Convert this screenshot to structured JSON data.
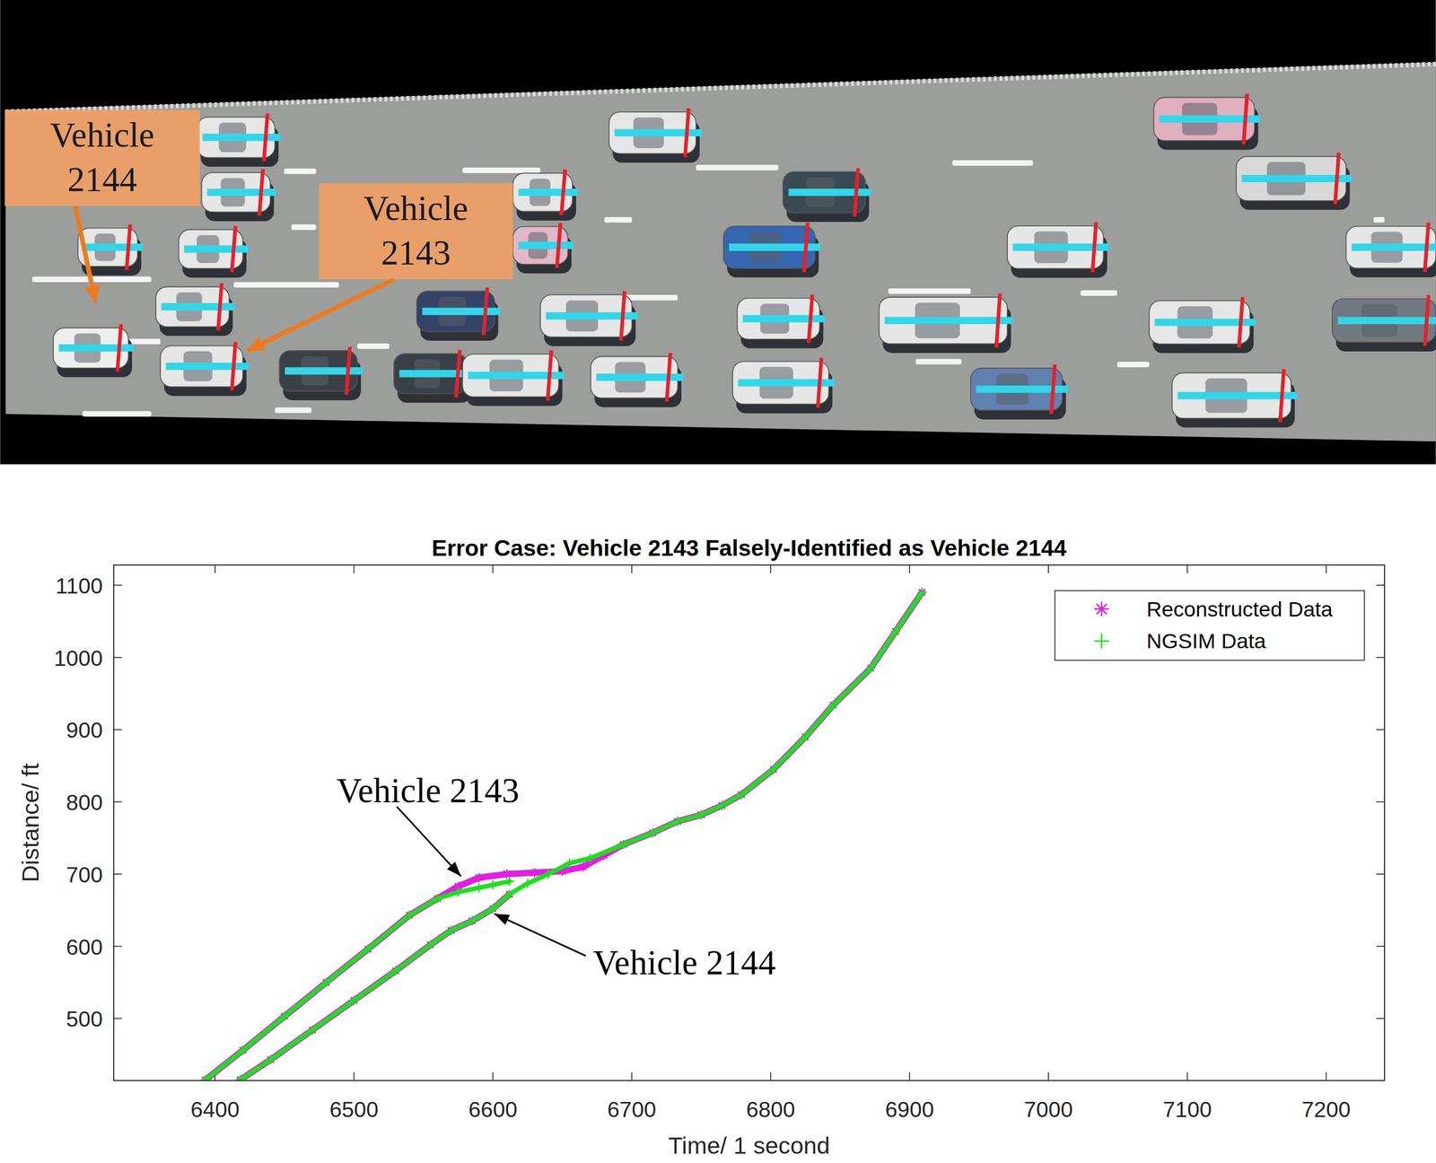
{
  "image": {
    "labels": [
      {
        "lines": [
          "Vehicle",
          "2144"
        ]
      },
      {
        "lines": [
          "Vehicle",
          "2143"
        ]
      }
    ]
  },
  "chart_data": {
    "type": "line",
    "title": "Error Case: Vehicle 2143  Falsely-Identified as Vehicle 2144",
    "x_label": "Time/ 1 second",
    "y_label": "Distance/ ft",
    "xlim": [
      6327,
      7242
    ],
    "ylim": [
      414,
      1128
    ],
    "xticks": [
      6400,
      6500,
      6600,
      6700,
      6800,
      6900,
      7000,
      7100,
      7200
    ],
    "yticks": [
      500,
      600,
      700,
      800,
      900,
      1000,
      1100
    ],
    "grid": false,
    "legend": "upper right",
    "series": [
      {
        "name": "Reconstructed Data",
        "color": "#e020e0",
        "marker": "star",
        "line_style": "solid",
        "x": [
          6393,
          6420,
          6450,
          6480,
          6510,
          6540,
          6560,
          6575,
          6590,
          6610,
          6630,
          6650,
          6665,
          6680,
          6694,
          6715,
          6733,
          6750,
          6765,
          6779,
          6802,
          6825,
          6845,
          6872,
          6890,
          6909,
          null,
          6418,
          6440,
          6470,
          6500,
          6530,
          6555,
          6570,
          6585,
          6600,
          6612
        ],
        "values": [
          415,
          456,
          503,
          550,
          596,
          643,
          666,
          683,
          695,
          700,
          702,
          704,
          710,
          726,
          741,
          757,
          773,
          782,
          795,
          810,
          845,
          890,
          934,
          985,
          1036,
          1090,
          null,
          415,
          443,
          484,
          525,
          566,
          602,
          622,
          635,
          652,
          672
        ]
      },
      {
        "name": "NGSIM Data",
        "color": "#22dd22",
        "marker": "plus",
        "line_style": "solid",
        "x": [
          6393,
          6420,
          6450,
          6480,
          6510,
          6540,
          6560,
          6575,
          6590,
          6600,
          6612,
          null,
          6418,
          6440,
          6470,
          6500,
          6530,
          6555,
          6570,
          6585,
          6600,
          6612,
          6625,
          6640,
          6655,
          6670,
          6694,
          6715,
          6733,
          6750,
          6765,
          6779,
          6802,
          6825,
          6845,
          6872,
          6890,
          6909
        ],
        "values": [
          415,
          456,
          503,
          550,
          596,
          643,
          666,
          675,
          681,
          685,
          690,
          null,
          415,
          443,
          484,
          525,
          566,
          602,
          622,
          635,
          652,
          672,
          687,
          700,
          715,
          722,
          741,
          757,
          773,
          782,
          795,
          810,
          845,
          890,
          934,
          985,
          1036,
          1090
        ]
      }
    ],
    "annotations": [
      {
        "text": "Vehicle 2143",
        "x": 6577,
        "y": 697
      },
      {
        "text": "Vehicle 2144",
        "x": 6601,
        "y": 645
      }
    ]
  }
}
